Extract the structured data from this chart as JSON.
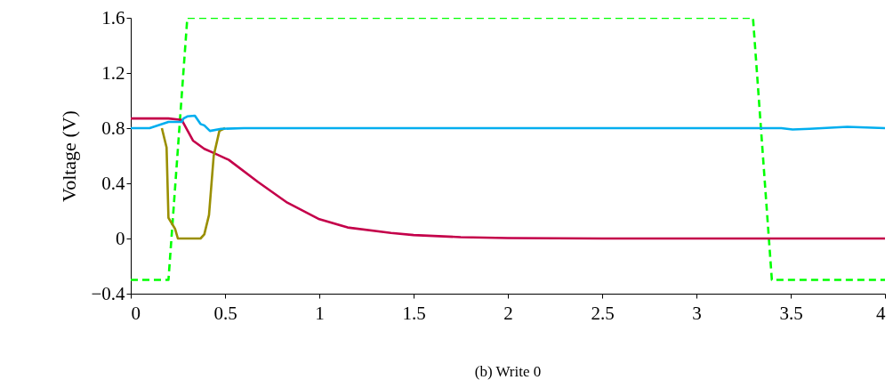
{
  "chart_data": {
    "type": "line",
    "ylabel": "Voltage (V)",
    "annotations": [
      "(b) Write 0"
    ],
    "xlim": [
      0,
      4
    ],
    "ylim": [
      -0.4,
      1.6
    ],
    "xticks": [
      0,
      0.5,
      1,
      1.5,
      2,
      2.5,
      3,
      3.5,
      4
    ],
    "yticks": [
      -0.4,
      0,
      0.4,
      0.8,
      1.2,
      1.6
    ],
    "grid": false,
    "series": [
      {
        "color": "#00ff00",
        "line_style": "dashed",
        "x": [
          0,
          0.2,
          0.3,
          3.3,
          3.4,
          4
        ],
        "values": [
          -0.3,
          -0.3,
          1.6,
          1.6,
          -0.3,
          -0.3
        ]
      },
      {
        "color": "#c4004a",
        "line_style": "solid",
        "x": [
          0,
          0.2,
          0.27,
          0.33,
          0.39,
          0.44,
          0.52,
          0.675,
          0.83,
          1,
          1.15,
          1.38,
          1.5,
          1.75,
          2,
          2.5,
          3,
          3.5,
          4
        ],
        "values": [
          0.87,
          0.87,
          0.86,
          0.71,
          0.65,
          0.62,
          0.57,
          0.41,
          0.26,
          0.14,
          0.08,
          0.04,
          0.025,
          0.01,
          0.003,
          0,
          0,
          0,
          0
        ]
      },
      {
        "color": "#9a8f00",
        "line_style": "solid",
        "x": [
          0.165,
          0.19,
          0.2,
          0.235,
          0.25,
          0.37,
          0.39,
          0.415,
          0.44,
          0.47,
          0.5
        ],
        "values": [
          0.8,
          0.66,
          0.15,
          0.07,
          0,
          0,
          0.03,
          0.17,
          0.6,
          0.78,
          0.8
        ]
      },
      {
        "color": "#00aeef",
        "line_style": "solid",
        "x": [
          0,
          0.1,
          0.2,
          0.27,
          0.28,
          0.3,
          0.34,
          0.37,
          0.39,
          0.42,
          0.48,
          0.6,
          1,
          2,
          3,
          3.45,
          3.51,
          3.6,
          3.8,
          4
        ],
        "values": [
          0.8,
          0.8,
          0.845,
          0.845,
          0.87,
          0.885,
          0.89,
          0.83,
          0.82,
          0.78,
          0.795,
          0.8,
          0.8,
          0.8,
          0.8,
          0.8,
          0.79,
          0.795,
          0.81,
          0.8
        ]
      }
    ]
  }
}
